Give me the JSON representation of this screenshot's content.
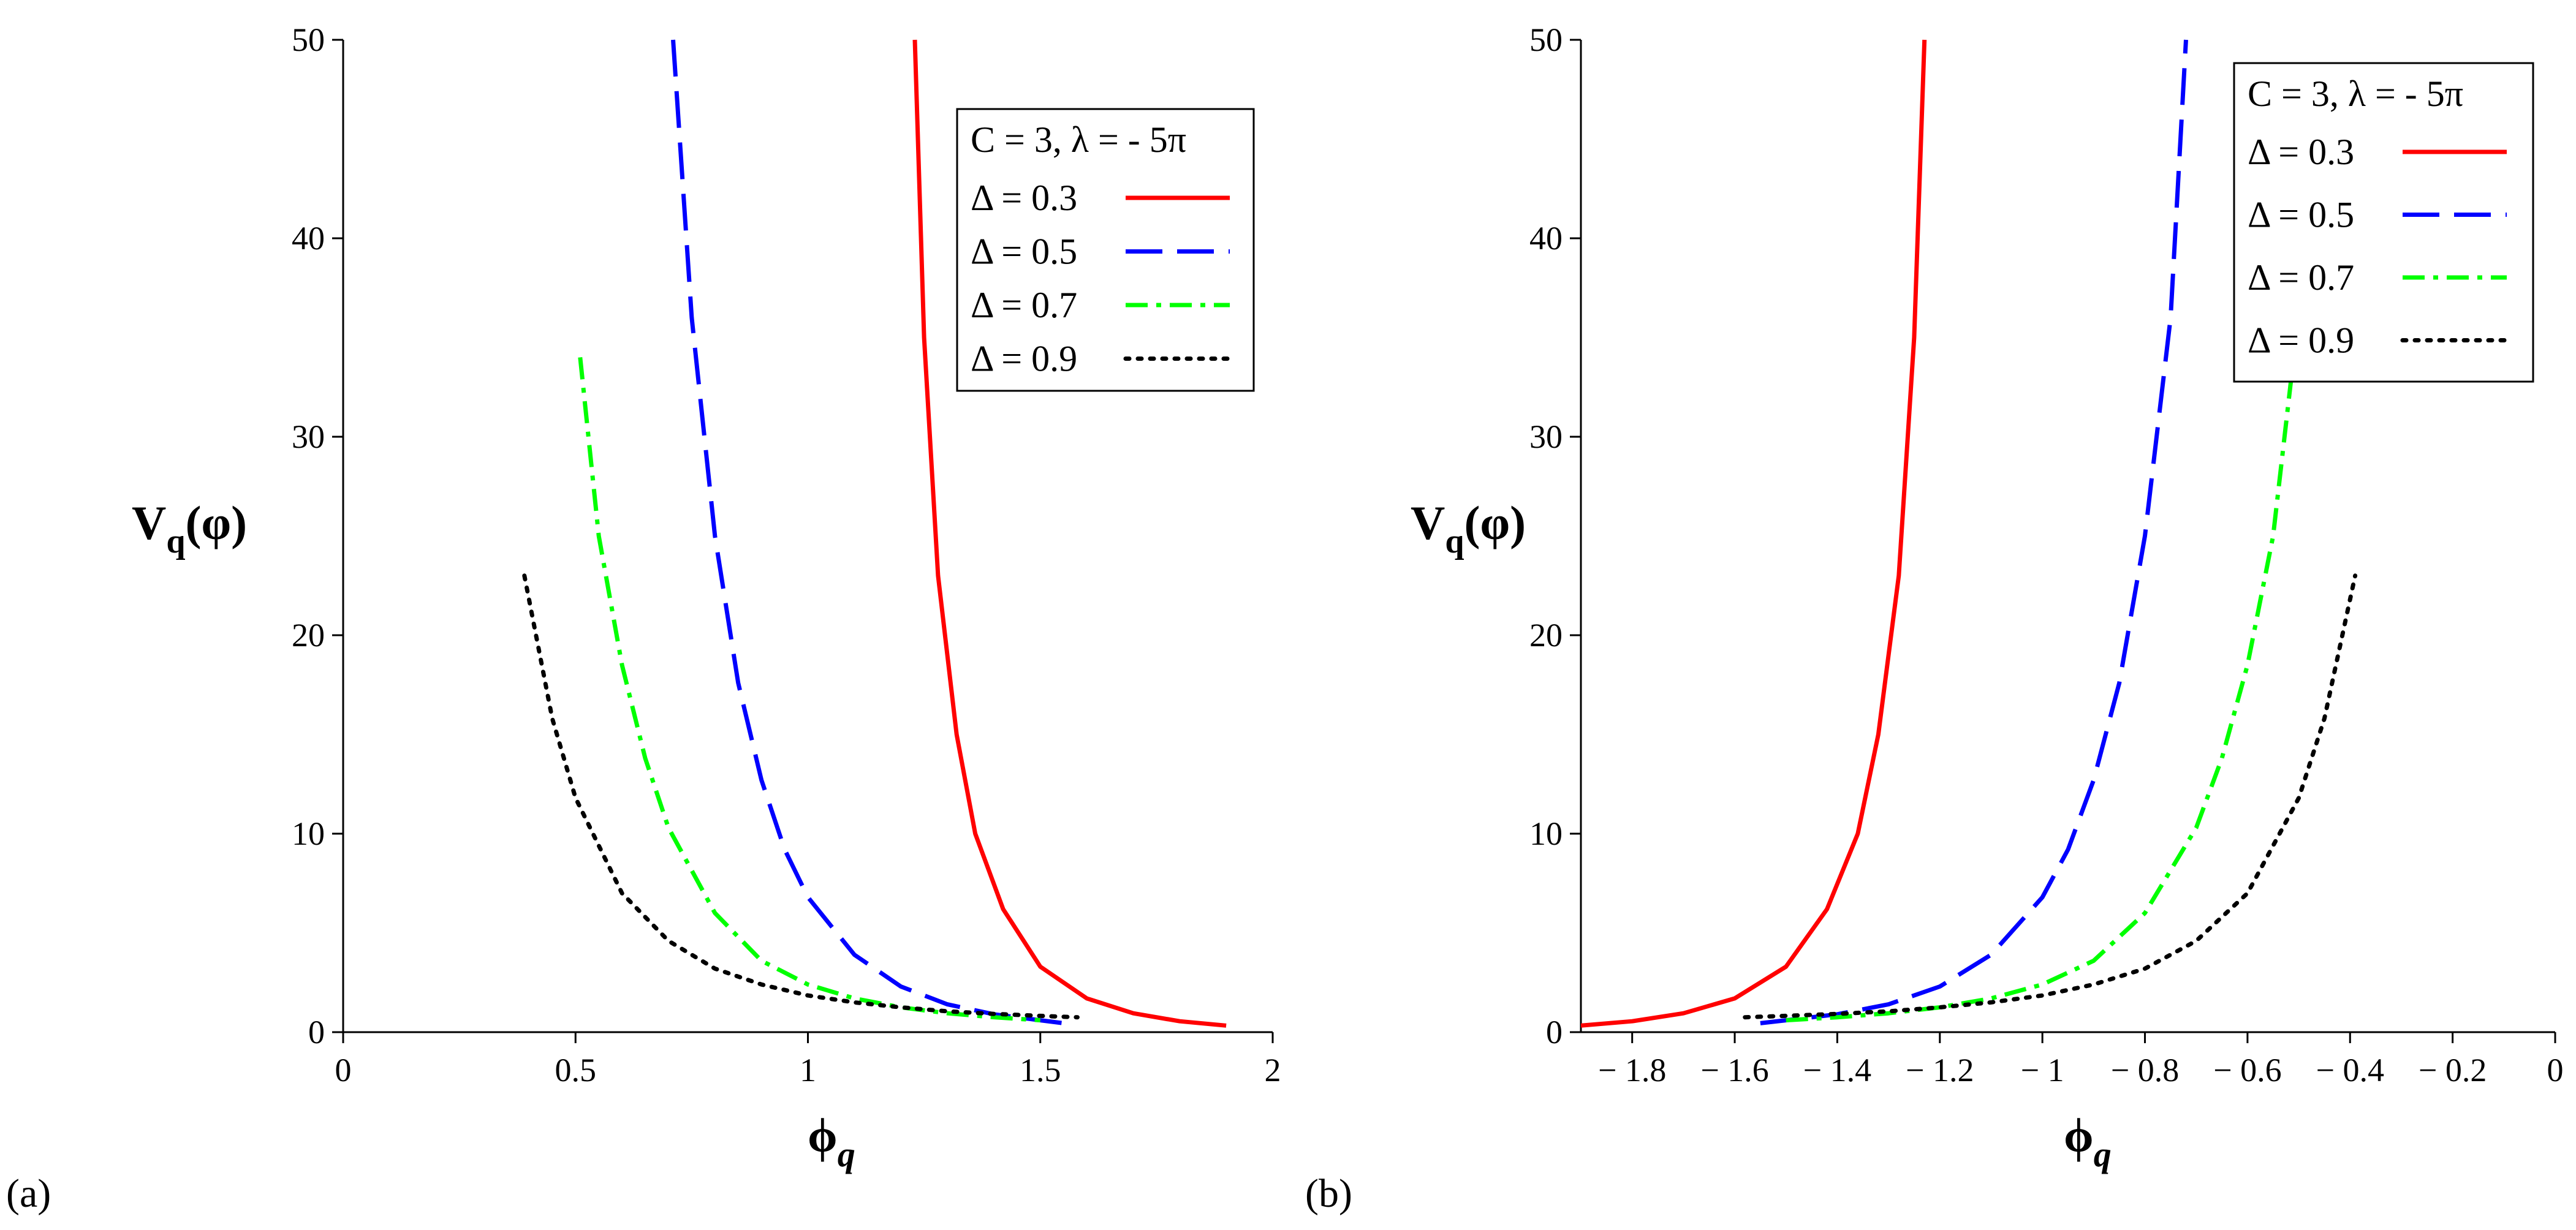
{
  "chart_data": [
    {
      "type": "line",
      "panel_label": "(a)",
      "xlabel": "ϕ",
      "xlabel_sub": "q",
      "ylabel": "V",
      "ylabel_sub": "q",
      "ylabel_arg": "(φ)",
      "xlim": [
        0,
        2
      ],
      "ylim": [
        0,
        50
      ],
      "xticks": [
        0,
        0.5,
        1,
        1.5,
        2
      ],
      "xtick_labels": [
        "0",
        "0.5",
        "1",
        "1.5",
        "2"
      ],
      "yticks": [
        0,
        10,
        20,
        30,
        40,
        50
      ],
      "ytick_labels": [
        "0",
        "10",
        "20",
        "30",
        "40",
        "50"
      ],
      "legend_title": "C = 3, λ = - 5π",
      "legend_position": "top-right",
      "series": [
        {
          "name": "Δ = 0.3",
          "color": "#ff0000",
          "style": "solid",
          "x": [
            1.23,
            1.25,
            1.28,
            1.32,
            1.36,
            1.42,
            1.5,
            1.6,
            1.7,
            1.8,
            1.9
          ],
          "y": [
            50,
            35,
            23,
            15,
            10,
            6.2,
            3.3,
            1.7,
            0.95,
            0.55,
            0.33
          ]
        },
        {
          "name": "Δ = 0.5",
          "color": "#0000ff",
          "style": "dashed",
          "x": [
            0.71,
            0.75,
            0.8,
            0.85,
            0.9,
            0.95,
            1.0,
            1.1,
            1.2,
            1.3,
            1.4,
            1.5,
            1.55
          ],
          "y": [
            50,
            36,
            25,
            17.6,
            12.7,
            9.2,
            6.8,
            3.9,
            2.3,
            1.4,
            0.9,
            0.6,
            0.45
          ]
        },
        {
          "name": "Δ = 0.7",
          "color": "#00ff00",
          "style": "dashdot",
          "x": [
            0.51,
            0.55,
            0.6,
            0.65,
            0.7,
            0.8,
            0.9,
            1.0,
            1.1,
            1.2,
            1.3,
            1.4,
            1.5
          ],
          "y": [
            34,
            25,
            18.5,
            13.8,
            10.3,
            6.0,
            3.6,
            2.4,
            1.7,
            1.25,
            0.95,
            0.75,
            0.6
          ]
        },
        {
          "name": "Δ = 0.9",
          "color": "#000000",
          "style": "dotted",
          "x": [
            0.39,
            0.45,
            0.5,
            0.6,
            0.7,
            0.8,
            0.9,
            1.0,
            1.1,
            1.2,
            1.3,
            1.4,
            1.5,
            1.58
          ],
          "y": [
            23,
            15.8,
            11.8,
            7.0,
            4.6,
            3.2,
            2.4,
            1.85,
            1.5,
            1.25,
            1.05,
            0.92,
            0.82,
            0.75
          ]
        }
      ]
    },
    {
      "type": "line",
      "panel_label": "(b)",
      "xlabel": "ϕ",
      "xlabel_sub": "q",
      "ylabel": "V",
      "ylabel_sub": "q",
      "ylabel_arg": "(φ)",
      "xlim": [
        -1.9,
        0
      ],
      "ylim": [
        0,
        50
      ],
      "xticks": [
        -1.8,
        -1.6,
        -1.4,
        -1.2,
        -1,
        -0.8,
        -0.6,
        -0.4,
        -0.2,
        0
      ],
      "xtick_labels": [
        "− 1.8",
        "− 1.6",
        "− 1.4",
        "− 1.2",
        "− 1",
        "− 0.8",
        "− 0.6",
        "− 0.4",
        "− 0.2",
        "0"
      ],
      "yticks": [
        0,
        10,
        20,
        30,
        40,
        50
      ],
      "ytick_labels": [
        "0",
        "10",
        "20",
        "30",
        "40",
        "50"
      ],
      "legend_title": "C = 3, λ = - 5π",
      "legend_position": "top-right",
      "series": [
        {
          "name": "Δ = 0.3",
          "color": "#ff0000",
          "style": "solid",
          "x": [
            -1.9,
            -1.8,
            -1.7,
            -1.6,
            -1.5,
            -1.42,
            -1.36,
            -1.32,
            -1.28,
            -1.25,
            -1.23
          ],
          "y": [
            0.33,
            0.55,
            0.95,
            1.7,
            3.3,
            6.2,
            10,
            15,
            23,
            35,
            50
          ]
        },
        {
          "name": "Δ = 0.5",
          "color": "#0000ff",
          "style": "dashed",
          "x": [
            -1.55,
            -1.5,
            -1.4,
            -1.3,
            -1.2,
            -1.1,
            -1.0,
            -0.95,
            -0.9,
            -0.85,
            -0.8,
            -0.75,
            -0.72
          ],
          "y": [
            0.45,
            0.6,
            0.9,
            1.4,
            2.3,
            3.9,
            6.8,
            9.2,
            12.7,
            17.6,
            25,
            36,
            50
          ]
        },
        {
          "name": "Δ = 0.7",
          "color": "#00ff00",
          "style": "dashdot",
          "x": [
            -1.5,
            -1.4,
            -1.3,
            -1.2,
            -1.1,
            -1.0,
            -0.9,
            -0.8,
            -0.7,
            -0.65,
            -0.6,
            -0.55,
            -0.51
          ],
          "y": [
            0.6,
            0.75,
            0.95,
            1.25,
            1.7,
            2.4,
            3.6,
            6.0,
            10.3,
            13.8,
            18.5,
            25,
            34
          ]
        },
        {
          "name": "Δ = 0.9",
          "color": "#000000",
          "style": "dotted",
          "x": [
            -1.58,
            -1.5,
            -1.4,
            -1.3,
            -1.2,
            -1.1,
            -1.0,
            -0.9,
            -0.8,
            -0.7,
            -0.6,
            -0.5,
            -0.45,
            -0.39
          ],
          "y": [
            0.75,
            0.82,
            0.92,
            1.05,
            1.25,
            1.5,
            1.85,
            2.4,
            3.2,
            4.6,
            7.0,
            11.8,
            15.8,
            23
          ]
        }
      ]
    }
  ]
}
